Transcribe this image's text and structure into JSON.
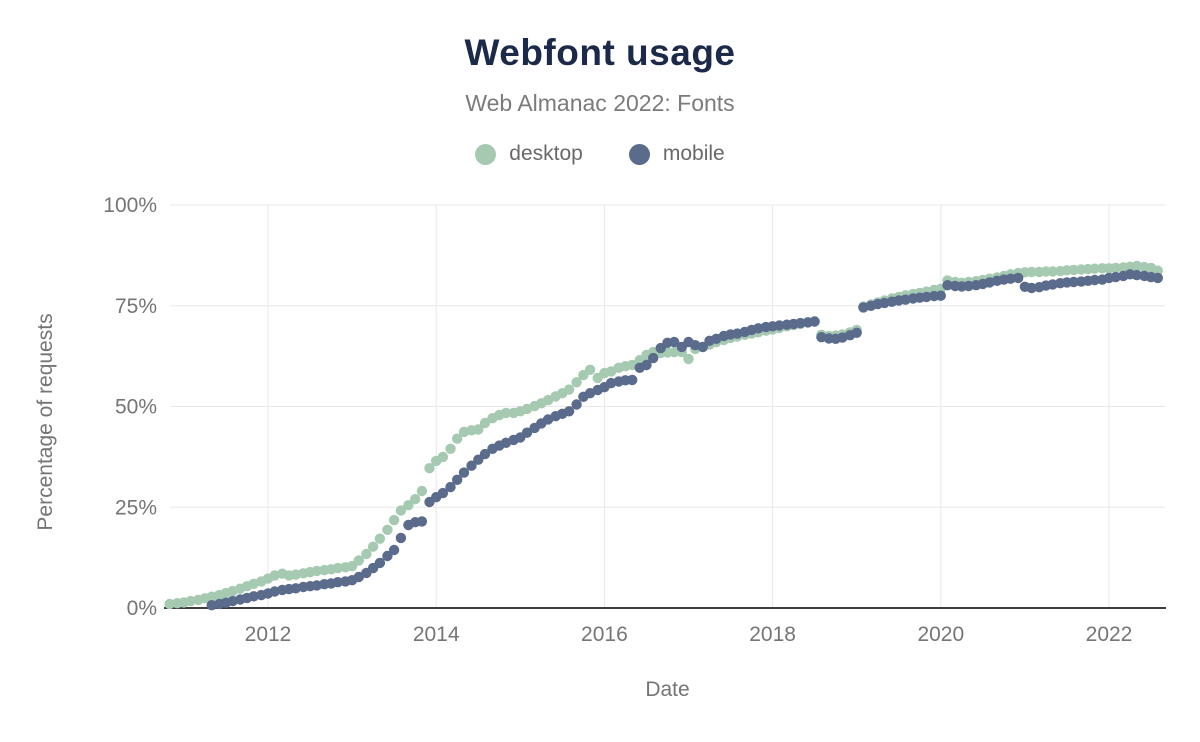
{
  "header": {
    "title": "Webfont usage",
    "subtitle": "Web Almanac 2022: Fonts"
  },
  "axes": {
    "x_title": "Date",
    "y_title": "Percentage of requests"
  },
  "colors": {
    "title_text": "#1b2a49",
    "subtitle_text": "#7b7b7b",
    "axis_text": "#757575",
    "gridline": "#e8e8e8",
    "axis_line": "#3d3d3d",
    "desktop": "#a5cab1",
    "mobile": "#5a6b8c"
  },
  "chart_data": {
    "type": "scatter",
    "title": "Webfont usage",
    "subtitle": "Web Almanac 2022: Fonts",
    "xlabel": "Date",
    "ylabel": "Percentage of requests",
    "xlim": [
      2010.79,
      2022.7
    ],
    "ylim": [
      0,
      100
    ],
    "grid": true,
    "legend_position": "top",
    "x_ticks": [
      2012,
      2014,
      2016,
      2018,
      2020,
      2022
    ],
    "y_ticks": [
      {
        "value": 0,
        "label": "0%"
      },
      {
        "value": 25,
        "label": "25%"
      },
      {
        "value": 50,
        "label": "50%"
      },
      {
        "value": 75,
        "label": "75%"
      },
      {
        "value": 100,
        "label": "100%"
      }
    ],
    "series": [
      {
        "name": "desktop",
        "color": "#a5cab1",
        "points": [
          [
            2010.83,
            1.0
          ],
          [
            2010.92,
            1.2
          ],
          [
            2011.0,
            1.4
          ],
          [
            2011.08,
            1.7
          ],
          [
            2011.17,
            2.0
          ],
          [
            2011.25,
            2.4
          ],
          [
            2011.33,
            2.8
          ],
          [
            2011.42,
            3.2
          ],
          [
            2011.5,
            3.7
          ],
          [
            2011.58,
            4.2
          ],
          [
            2011.67,
            4.8
          ],
          [
            2011.75,
            5.4
          ],
          [
            2011.83,
            6.0
          ],
          [
            2011.92,
            6.6
          ],
          [
            2012.0,
            7.3
          ],
          [
            2012.08,
            8.1
          ],
          [
            2012.17,
            8.5
          ],
          [
            2012.25,
            8.1
          ],
          [
            2012.33,
            8.3
          ],
          [
            2012.42,
            8.6
          ],
          [
            2012.5,
            8.9
          ],
          [
            2012.58,
            9.2
          ],
          [
            2012.67,
            9.4
          ],
          [
            2012.75,
            9.6
          ],
          [
            2012.83,
            9.9
          ],
          [
            2012.92,
            10.1
          ],
          [
            2013.0,
            10.4
          ],
          [
            2013.08,
            11.8
          ],
          [
            2013.17,
            13.4
          ],
          [
            2013.25,
            15.2
          ],
          [
            2013.33,
            17.2
          ],
          [
            2013.42,
            19.4
          ],
          [
            2013.5,
            21.8
          ],
          [
            2013.58,
            24.2
          ],
          [
            2013.67,
            25.5
          ],
          [
            2013.75,
            27.0
          ],
          [
            2013.83,
            29.0
          ],
          [
            2013.92,
            34.7
          ],
          [
            2014.0,
            36.5
          ],
          [
            2014.08,
            37.5
          ],
          [
            2014.17,
            39.5
          ],
          [
            2014.25,
            42.0
          ],
          [
            2014.33,
            43.7
          ],
          [
            2014.42,
            44.1
          ],
          [
            2014.5,
            44.3
          ],
          [
            2014.58,
            45.9
          ],
          [
            2014.67,
            47.1
          ],
          [
            2014.75,
            47.9
          ],
          [
            2014.83,
            48.4
          ],
          [
            2014.92,
            48.4
          ],
          [
            2015.0,
            48.8
          ],
          [
            2015.08,
            49.4
          ],
          [
            2015.17,
            50.1
          ],
          [
            2015.25,
            50.8
          ],
          [
            2015.33,
            51.6
          ],
          [
            2015.42,
            52.5
          ],
          [
            2015.5,
            53.3
          ],
          [
            2015.58,
            54.2
          ],
          [
            2015.67,
            56.0
          ],
          [
            2015.75,
            57.8
          ],
          [
            2015.83,
            59.1
          ],
          [
            2015.92,
            57.1
          ],
          [
            2016.0,
            58.3
          ],
          [
            2016.08,
            58.7
          ],
          [
            2016.17,
            59.6
          ],
          [
            2016.25,
            60.0
          ],
          [
            2016.33,
            60.3
          ],
          [
            2016.42,
            61.5
          ],
          [
            2016.5,
            62.8
          ],
          [
            2016.58,
            63.5
          ],
          [
            2016.67,
            63.3
          ],
          [
            2016.75,
            63.4
          ],
          [
            2016.83,
            63.5
          ],
          [
            2016.92,
            63.5
          ],
          [
            2017.0,
            61.8
          ],
          [
            2017.08,
            64.3
          ],
          [
            2017.17,
            64.8
          ],
          [
            2017.25,
            65.4
          ],
          [
            2017.33,
            66.0
          ],
          [
            2017.42,
            66.5
          ],
          [
            2017.5,
            67.0
          ],
          [
            2017.58,
            67.4
          ],
          [
            2017.67,
            67.8
          ],
          [
            2017.75,
            68.1
          ],
          [
            2017.83,
            68.4
          ],
          [
            2017.92,
            68.8
          ],
          [
            2018.0,
            69.1
          ],
          [
            2018.08,
            69.5
          ],
          [
            2018.17,
            69.9
          ],
          [
            2018.25,
            70.2
          ],
          [
            2018.33,
            70.5
          ],
          [
            2018.42,
            70.8
          ],
          [
            2018.5,
            71.1
          ],
          [
            2018.58,
            67.8
          ],
          [
            2018.67,
            67.5
          ],
          [
            2018.75,
            67.6
          ],
          [
            2018.83,
            67.9
          ],
          [
            2018.92,
            68.4
          ],
          [
            2019.0,
            69.0
          ],
          [
            2019.08,
            74.8
          ],
          [
            2019.17,
            75.3
          ],
          [
            2019.25,
            75.8
          ],
          [
            2019.33,
            76.3
          ],
          [
            2019.42,
            76.8
          ],
          [
            2019.5,
            77.2
          ],
          [
            2019.58,
            77.6
          ],
          [
            2019.67,
            77.9
          ],
          [
            2019.75,
            78.2
          ],
          [
            2019.83,
            78.5
          ],
          [
            2019.92,
            78.9
          ],
          [
            2020.0,
            79.2
          ],
          [
            2020.08,
            81.3
          ],
          [
            2020.17,
            80.9
          ],
          [
            2020.25,
            80.7
          ],
          [
            2020.33,
            80.9
          ],
          [
            2020.42,
            81.1
          ],
          [
            2020.5,
            81.4
          ],
          [
            2020.58,
            81.7
          ],
          [
            2020.67,
            82.0
          ],
          [
            2020.75,
            82.4
          ],
          [
            2020.83,
            82.8
          ],
          [
            2020.92,
            83.1
          ],
          [
            2021.0,
            83.3
          ],
          [
            2021.08,
            83.4
          ],
          [
            2021.17,
            83.4
          ],
          [
            2021.25,
            83.5
          ],
          [
            2021.33,
            83.5
          ],
          [
            2021.42,
            83.6
          ],
          [
            2021.5,
            83.8
          ],
          [
            2021.58,
            83.9
          ],
          [
            2021.67,
            84.0
          ],
          [
            2021.75,
            84.1
          ],
          [
            2021.83,
            84.2
          ],
          [
            2021.92,
            84.3
          ],
          [
            2022.0,
            84.3
          ],
          [
            2022.08,
            84.4
          ],
          [
            2022.17,
            84.5
          ],
          [
            2022.25,
            84.7
          ],
          [
            2022.33,
            84.9
          ],
          [
            2022.42,
            84.6
          ],
          [
            2022.5,
            84.4
          ],
          [
            2022.58,
            83.7
          ]
        ]
      },
      {
        "name": "mobile",
        "color": "#5a6b8c",
        "points": [
          [
            2011.33,
            0.7
          ],
          [
            2011.42,
            1.0
          ],
          [
            2011.5,
            1.3
          ],
          [
            2011.58,
            1.7
          ],
          [
            2011.67,
            2.1
          ],
          [
            2011.75,
            2.5
          ],
          [
            2011.83,
            2.9
          ],
          [
            2011.92,
            3.2
          ],
          [
            2012.0,
            3.6
          ],
          [
            2012.08,
            4.1
          ],
          [
            2012.17,
            4.5
          ],
          [
            2012.25,
            4.7
          ],
          [
            2012.33,
            4.9
          ],
          [
            2012.42,
            5.2
          ],
          [
            2012.5,
            5.4
          ],
          [
            2012.58,
            5.6
          ],
          [
            2012.67,
            5.9
          ],
          [
            2012.75,
            6.1
          ],
          [
            2012.83,
            6.4
          ],
          [
            2012.92,
            6.6
          ],
          [
            2013.0,
            6.9
          ],
          [
            2013.08,
            7.7
          ],
          [
            2013.17,
            8.7
          ],
          [
            2013.25,
            9.9
          ],
          [
            2013.33,
            11.2
          ],
          [
            2013.42,
            12.9
          ],
          [
            2013.5,
            14.4
          ],
          [
            2013.58,
            17.4
          ],
          [
            2013.67,
            20.6
          ],
          [
            2013.75,
            21.3
          ],
          [
            2013.83,
            21.5
          ],
          [
            2013.92,
            26.3
          ],
          [
            2014.0,
            27.5
          ],
          [
            2014.08,
            28.5
          ],
          [
            2014.17,
            30.0
          ],
          [
            2014.25,
            31.8
          ],
          [
            2014.33,
            33.6
          ],
          [
            2014.42,
            35.3
          ],
          [
            2014.5,
            36.8
          ],
          [
            2014.58,
            38.2
          ],
          [
            2014.67,
            39.5
          ],
          [
            2014.75,
            40.3
          ],
          [
            2014.83,
            41.0
          ],
          [
            2014.92,
            41.7
          ],
          [
            2015.0,
            42.3
          ],
          [
            2015.08,
            43.5
          ],
          [
            2015.17,
            44.7
          ],
          [
            2015.25,
            45.8
          ],
          [
            2015.33,
            46.8
          ],
          [
            2015.42,
            47.6
          ],
          [
            2015.5,
            48.2
          ],
          [
            2015.58,
            48.8
          ],
          [
            2015.67,
            50.5
          ],
          [
            2015.75,
            52.4
          ],
          [
            2015.83,
            53.3
          ],
          [
            2015.92,
            54.1
          ],
          [
            2016.0,
            54.8
          ],
          [
            2016.08,
            55.8
          ],
          [
            2016.17,
            56.2
          ],
          [
            2016.25,
            56.5
          ],
          [
            2016.33,
            56.6
          ],
          [
            2016.42,
            59.6
          ],
          [
            2016.5,
            60.3
          ],
          [
            2016.58,
            62.0
          ],
          [
            2016.67,
            64.5
          ],
          [
            2016.75,
            65.8
          ],
          [
            2016.83,
            66.0
          ],
          [
            2016.92,
            64.8
          ],
          [
            2017.0,
            66.0
          ],
          [
            2017.08,
            65.2
          ],
          [
            2017.17,
            64.8
          ],
          [
            2017.25,
            66.3
          ],
          [
            2017.33,
            66.8
          ],
          [
            2017.42,
            67.5
          ],
          [
            2017.5,
            67.9
          ],
          [
            2017.58,
            68.1
          ],
          [
            2017.67,
            68.5
          ],
          [
            2017.75,
            69.0
          ],
          [
            2017.83,
            69.4
          ],
          [
            2017.92,
            69.7
          ],
          [
            2018.0,
            69.9
          ],
          [
            2018.08,
            70.1
          ],
          [
            2018.17,
            70.3
          ],
          [
            2018.25,
            70.5
          ],
          [
            2018.33,
            70.7
          ],
          [
            2018.42,
            70.9
          ],
          [
            2018.5,
            71.1
          ],
          [
            2018.58,
            67.2
          ],
          [
            2018.67,
            66.9
          ],
          [
            2018.75,
            66.8
          ],
          [
            2018.83,
            67.1
          ],
          [
            2018.92,
            67.7
          ],
          [
            2019.0,
            68.3
          ],
          [
            2019.08,
            74.6
          ],
          [
            2019.17,
            75.0
          ],
          [
            2019.25,
            75.4
          ],
          [
            2019.33,
            75.7
          ],
          [
            2019.42,
            76.0
          ],
          [
            2019.5,
            76.3
          ],
          [
            2019.58,
            76.5
          ],
          [
            2019.67,
            76.8
          ],
          [
            2019.75,
            77.0
          ],
          [
            2019.83,
            77.2
          ],
          [
            2019.92,
            77.4
          ],
          [
            2020.0,
            77.5
          ],
          [
            2020.08,
            80.1
          ],
          [
            2020.17,
            79.9
          ],
          [
            2020.25,
            79.8
          ],
          [
            2020.33,
            79.9
          ],
          [
            2020.42,
            80.1
          ],
          [
            2020.5,
            80.4
          ],
          [
            2020.58,
            80.8
          ],
          [
            2020.67,
            81.2
          ],
          [
            2020.75,
            81.5
          ],
          [
            2020.83,
            81.7
          ],
          [
            2020.92,
            81.9
          ],
          [
            2021.0,
            79.7
          ],
          [
            2021.08,
            79.4
          ],
          [
            2021.17,
            79.6
          ],
          [
            2021.25,
            80.0
          ],
          [
            2021.33,
            80.3
          ],
          [
            2021.42,
            80.6
          ],
          [
            2021.5,
            80.8
          ],
          [
            2021.58,
            80.9
          ],
          [
            2021.67,
            81.0
          ],
          [
            2021.75,
            81.2
          ],
          [
            2021.83,
            81.4
          ],
          [
            2021.92,
            81.5
          ],
          [
            2022.0,
            81.9
          ],
          [
            2022.08,
            82.1
          ],
          [
            2022.17,
            82.4
          ],
          [
            2022.25,
            82.8
          ],
          [
            2022.33,
            82.6
          ],
          [
            2022.42,
            82.4
          ],
          [
            2022.5,
            82.1
          ],
          [
            2022.58,
            81.9
          ]
        ]
      }
    ]
  }
}
